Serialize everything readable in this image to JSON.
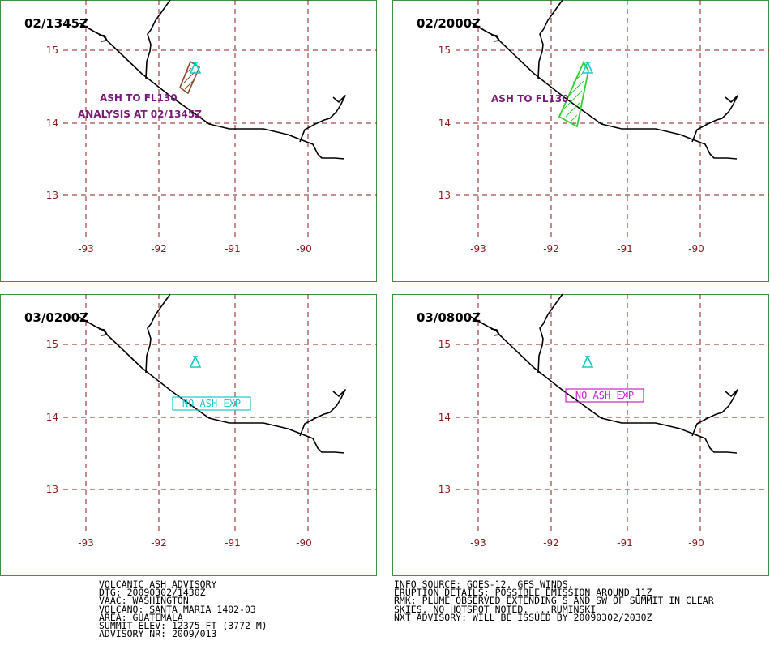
{
  "panels": [
    {
      "id": "p1",
      "timestamp": "02/1345Z",
      "lat_labels": [
        "15",
        "14",
        "13"
      ],
      "lon_labels": [
        "-93",
        "-92",
        "-91",
        "-90"
      ],
      "annotations": [
        "ASH TO FL130",
        "ANALYSIS AT 02/1345Z"
      ],
      "ash_color": "#8b4a2b"
    },
    {
      "id": "p2",
      "timestamp": "02/2000Z",
      "lat_labels": [
        "15",
        "14",
        "13"
      ],
      "lon_labels": [
        "-93",
        "-92",
        "-91",
        "-90"
      ],
      "annotations": [
        "ASH TO FL130"
      ],
      "ash_color": "#33cc33"
    },
    {
      "id": "p3",
      "timestamp": "03/0200Z",
      "lat_labels": [
        "15",
        "14",
        "13"
      ],
      "lon_labels": [
        "-93",
        "-92",
        "-91",
        "-90"
      ],
      "no_ash_label": "NO ASH EXP",
      "no_ash_color": "#19c8c8"
    },
    {
      "id": "p4",
      "timestamp": "03/0800Z",
      "lat_labels": [
        "15",
        "14",
        "13"
      ],
      "lon_labels": [
        "-93",
        "-92",
        "-91",
        "-90"
      ],
      "no_ash_label": "NO ASH EXP",
      "no_ash_color": "#cc22cc"
    }
  ],
  "volcano_symbol_color": "#19c8c8",
  "advisory_left": [
    "VOLCANIC ASH ADVISORY",
    "DTG: 20090302/1430Z",
    "VAAC: WASHINGTON",
    "VOLCANO: SANTA MARIA 1402-03",
    "AREA: GUATEMALA",
    "SUMMIT ELEV: 12375 FT (3772 M)",
    "ADVISORY NR: 2009/013"
  ],
  "advisory_right": [
    "INFO SOURCE: GOES-12. GFS WINDS.",
    "ERUPTION DETAILS: POSSIBLE EMISSION AROUND 11Z",
    "RMK: PLUME OBSERVED EXTENDING S AND SW OF SUMMIT IN CLEAR",
    "SKIES. NO HOTSPOT NOTED. ...RUMINSKI",
    "NXT ADVISORY: WILL BE ISSUED BY 20090302/2030Z"
  ]
}
